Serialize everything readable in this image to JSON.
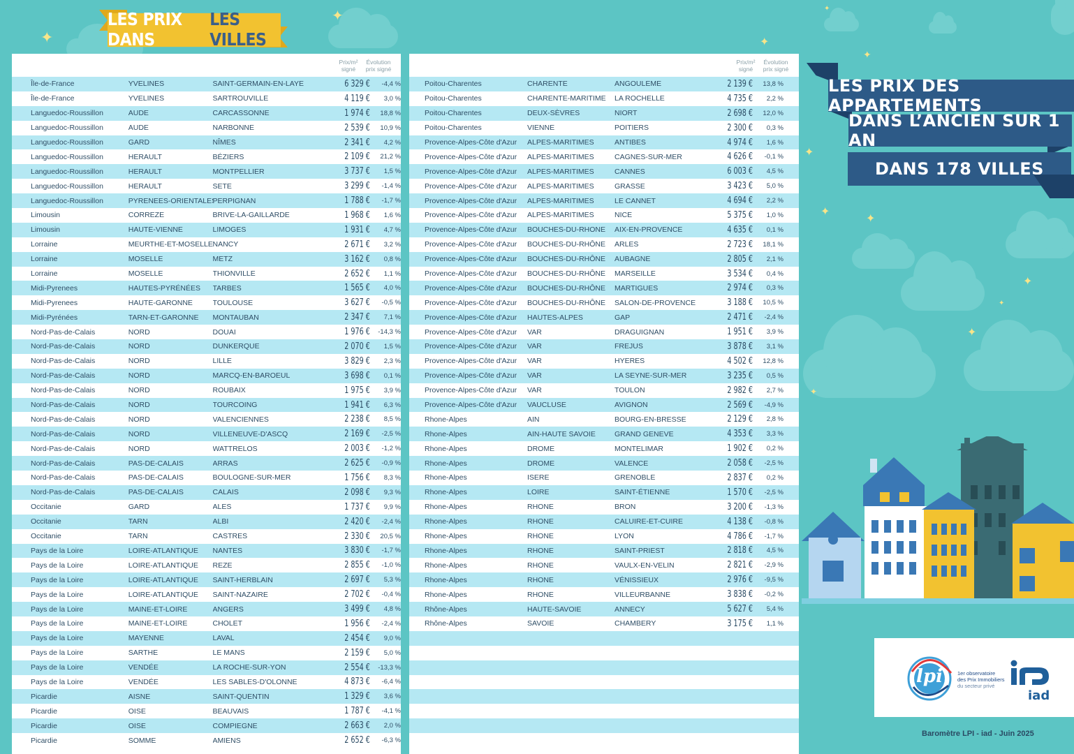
{
  "header": {
    "prefix": "LES PRIX DANS",
    "highlight": "LES VILLES"
  },
  "title": {
    "line1": "LES PRIX DES APPARTEMENTS",
    "line2": "DANS L’ANCIEN SUR 1 AN",
    "line3": "DANS 178 VILLES"
  },
  "columns": {
    "price": "Prix/m²\nsigné",
    "evolution": "Évolution\nprix signé"
  },
  "left_rows": [
    [
      "Île-de-France",
      "YVELINES",
      "SAINT-GERMAIN-EN-LAYE",
      "6 329 €",
      "-4,4 %"
    ],
    [
      "Île-de-France",
      "YVELINES",
      "SARTROUVILLE",
      "4 119 €",
      "3,0 %"
    ],
    [
      "Languedoc-Roussillon",
      "AUDE",
      "CARCASSONNE",
      "1 974 €",
      "18,8 %"
    ],
    [
      "Languedoc-Roussillon",
      "AUDE",
      "NARBONNE",
      "2 539 €",
      "10,9 %"
    ],
    [
      "Languedoc-Roussillon",
      "GARD",
      "NÎMES",
      "2 341 €",
      "4,2 %"
    ],
    [
      "Languedoc-Roussillon",
      "HERAULT",
      "BÉZIERS",
      "2 109 €",
      "21,2 %"
    ],
    [
      "Languedoc-Roussillon",
      "HERAULT",
      "MONTPELLIER",
      "3 737 €",
      "1,5 %"
    ],
    [
      "Languedoc-Roussillon",
      "HERAULT",
      "SETE",
      "3 299 €",
      "-1,4 %"
    ],
    [
      "Languedoc-Roussillon",
      "PYRENEES-ORIENTALES",
      "PERPIGNAN",
      "1 788 €",
      "-1,7 %"
    ],
    [
      "Limousin",
      "CORREZE",
      "BRIVE-LA-GAILLARDE",
      "1 968 €",
      "1,6 %"
    ],
    [
      "Limousin",
      "HAUTE-VIENNE",
      "LIMOGES",
      "1 931 €",
      "4,7 %"
    ],
    [
      "Lorraine",
      "MEURTHE-ET-MOSELLE",
      "NANCY",
      "2 671 €",
      "3,2 %"
    ],
    [
      "Lorraine",
      "MOSELLE",
      "METZ",
      "3 162 €",
      "0,8 %"
    ],
    [
      "Lorraine",
      "MOSELLE",
      "THIONVILLE",
      "2 652 €",
      "1,1 %"
    ],
    [
      "Midi-Pyrenees",
      " HAUTES-PYRÉNÉES",
      "TARBES",
      "1 565 €",
      "4,0 %"
    ],
    [
      "Midi-Pyrenees",
      "HAUTE-GARONNE",
      "TOULOUSE",
      "3 627 €",
      "-0,5 %"
    ],
    [
      "Midi-Pyrénées",
      "TARN-ET-GARONNE",
      "MONTAUBAN",
      "2 347 €",
      "7,1 %"
    ],
    [
      "Nord-Pas-de-Calais",
      "NORD",
      "DOUAI",
      "1 976 €",
      "-14,3 %"
    ],
    [
      "Nord-Pas-de-Calais",
      "NORD",
      "DUNKERQUE",
      "2 070 €",
      "1,5 %"
    ],
    [
      "Nord-Pas-de-Calais",
      "NORD",
      "LILLE",
      "3 829 €",
      "2,3 %"
    ],
    [
      "Nord-Pas-de-Calais",
      "NORD",
      "MARCQ-EN-BAROEUL",
      "3 698 €",
      "0,1 %"
    ],
    [
      "Nord-Pas-de-Calais",
      "NORD",
      "ROUBAIX",
      "1 975 €",
      "3,9 %"
    ],
    [
      "Nord-Pas-de-Calais",
      "NORD",
      "TOURCOING",
      "1 941 €",
      "6,3 %"
    ],
    [
      "Nord-Pas-de-Calais",
      "NORD",
      "VALENCIENNES",
      "2 238 €",
      "8,5 %"
    ],
    [
      "Nord-Pas-de-Calais",
      "NORD",
      "VILLENEUVE-D'ASCQ",
      "2 169 €",
      "-2,5 %"
    ],
    [
      "Nord-Pas-de-Calais",
      "NORD",
      "WATTRELOS",
      "2 003 €",
      "-1,2 %"
    ],
    [
      "Nord-Pas-de-Calais",
      "PAS-DE-CALAIS",
      "ARRAS",
      "2 625 €",
      "-0,9 %"
    ],
    [
      "Nord-Pas-de-Calais",
      "PAS-DE-CALAIS",
      "BOULOGNE-SUR-MER",
      "1 756 €",
      "8,3 %"
    ],
    [
      "Nord-Pas-de-Calais",
      "PAS-DE-CALAIS",
      "CALAIS",
      "2 098 €",
      "9,3 %"
    ],
    [
      "Occitanie",
      "GARD",
      "ALES",
      "1 737 €",
      "9,9 %"
    ],
    [
      "Occitanie",
      "TARN",
      "ALBI",
      "2 420 €",
      "-2,4 %"
    ],
    [
      "Occitanie",
      "TARN",
      "CASTRES",
      "2 330 €",
      "20,5 %"
    ],
    [
      "Pays de la Loire",
      "LOIRE-ATLANTIQUE",
      "NANTES",
      "3 830 €",
      "-1,7 %"
    ],
    [
      "Pays de la Loire",
      "LOIRE-ATLANTIQUE",
      "REZE",
      "2 855 €",
      "-1,0 %"
    ],
    [
      "Pays de la Loire",
      "LOIRE-ATLANTIQUE",
      "SAINT-HERBLAIN",
      "2 697 €",
      "5,3 %"
    ],
    [
      "Pays de la Loire",
      "LOIRE-ATLANTIQUE",
      "SAINT-NAZAIRE",
      "2 702 €",
      "-0,4 %"
    ],
    [
      "Pays de la Loire",
      "MAINE-ET-LOIRE",
      "ANGERS",
      "3 499 €",
      "4,8 %"
    ],
    [
      "Pays de la Loire",
      "MAINE-ET-LOIRE",
      "CHOLET",
      "1 956 €",
      "-2,4 %"
    ],
    [
      "Pays de la Loire",
      "MAYENNE",
      "LAVAL",
      "2 454 €",
      "9,0 %"
    ],
    [
      "Pays de la Loire",
      "SARTHE",
      "LE MANS",
      "2 159 €",
      "5,0 %"
    ],
    [
      "Pays de la Loire",
      "VENDÉE",
      "LA ROCHE-SUR-YON",
      "2 554 €",
      "-13,3 %"
    ],
    [
      "Pays de la Loire",
      "VENDÉE",
      "LES SABLES-D'OLONNE",
      "4 873 €",
      "-6,4 %"
    ],
    [
      "Picardie",
      "AISNE",
      "SAINT-QUENTIN",
      "1 329 €",
      "3,6 %"
    ],
    [
      "Picardie",
      "OISE",
      "BEAUVAIS",
      "1 787 €",
      "-4,1 %"
    ],
    [
      "Picardie",
      "OISE",
      "COMPIEGNE",
      "2 663 €",
      "2,0 %"
    ],
    [
      "Picardie",
      "SOMME",
      "AMIENS",
      "2 652 €",
      "-6,3 %"
    ]
  ],
  "right_rows": [
    [
      "Poitou-Charentes",
      "CHARENTE",
      "ANGOULEME",
      "2 139 €",
      "13,8 %"
    ],
    [
      "Poitou-Charentes",
      "CHARENTE-MARITIME",
      "LA ROCHELLE",
      "4 735 €",
      "2,2 %"
    ],
    [
      "Poitou-Charentes",
      "DEUX-SÈVRES",
      "NIORT",
      "2 698 €",
      "12,0 %"
    ],
    [
      "Poitou-Charentes",
      "VIENNE",
      "POITIERS",
      "2 300 €",
      "0,3 %"
    ],
    [
      "Provence-Alpes-Côte d'Azur",
      "ALPES-MARITIMES",
      "ANTIBES",
      "4 974 €",
      "1,6 %"
    ],
    [
      "Provence-Alpes-Côte d'Azur",
      "ALPES-MARITIMES",
      "CAGNES-SUR-MER",
      "4 626 €",
      "-0,1 %"
    ],
    [
      "Provence-Alpes-Côte d'Azur",
      "ALPES-MARITIMES",
      "CANNES",
      "6 003 €",
      "4,5 %"
    ],
    [
      "Provence-Alpes-Côte d'Azur",
      "ALPES-MARITIMES",
      "GRASSE",
      "3 423 €",
      "5,0 %"
    ],
    [
      "Provence-Alpes-Côte d'Azur",
      "ALPES-MARITIMES",
      "LE CANNET",
      "4 694 €",
      "2,2 %"
    ],
    [
      "Provence-Alpes-Côte d'Azur",
      "ALPES-MARITIMES",
      "NICE",
      "5 375 €",
      "1,0 %"
    ],
    [
      "Provence-Alpes-Côte d'Azur",
      "BOUCHES-DU-RHONE",
      "AIX-EN-PROVENCE",
      "4 635 €",
      "0,1 %"
    ],
    [
      "Provence-Alpes-Côte d'Azur",
      "BOUCHES-DU-RHÔNE",
      "ARLES",
      "2 723 €",
      "18,1 %"
    ],
    [
      "Provence-Alpes-Côte d'Azur",
      "BOUCHES-DU-RHÔNE",
      "AUBAGNE",
      "2 805 €",
      "2,1 %"
    ],
    [
      "Provence-Alpes-Côte d'Azur",
      "BOUCHES-DU-RHÔNE",
      "MARSEILLE",
      "3 534 €",
      "0,4 %"
    ],
    [
      "Provence-Alpes-Côte d'Azur",
      "BOUCHES-DU-RHÔNE",
      "MARTIGUES",
      "2 974 €",
      "0,3 %"
    ],
    [
      "Provence-Alpes-Côte d'Azur",
      "BOUCHES-DU-RHÔNE",
      "SALON-DE-PROVENCE",
      "3 188 €",
      "10,5 %"
    ],
    [
      "Provence-Alpes-Côte d'Azur",
      "HAUTES-ALPES",
      "GAP",
      "2 471 €",
      "-2,4 %"
    ],
    [
      "Provence-Alpes-Côte d'Azur",
      "VAR",
      "DRAGUIGNAN",
      "1 951 €",
      "3,9 %"
    ],
    [
      "Provence-Alpes-Côte d'Azur",
      "VAR",
      "FREJUS",
      "3 878 €",
      "3,1 %"
    ],
    [
      "Provence-Alpes-Côte d'Azur",
      "VAR",
      "HYERES",
      "4 502 €",
      "12,8 %"
    ],
    [
      "Provence-Alpes-Côte d'Azur",
      "VAR",
      "LA SEYNE-SUR-MER",
      "3 235 €",
      "0,5 %"
    ],
    [
      "Provence-Alpes-Côte d'Azur",
      "VAR",
      "TOULON",
      "2 982 €",
      "2,7 %"
    ],
    [
      "Provence-Alpes-Côte d'Azur",
      "VAUCLUSE",
      "AVIGNON",
      "2 569 €",
      "-4,9 %"
    ],
    [
      "Rhone-Alpes",
      "AIN",
      "BOURG-EN-BRESSE",
      "2 129 €",
      "2,8 %"
    ],
    [
      "Rhone-Alpes",
      "AIN-HAUTE SAVOIE",
      "GRAND GENEVE",
      "4 353 €",
      "3,3 %"
    ],
    [
      "Rhone-Alpes",
      "DROME",
      "MONTELIMAR",
      "1 902 €",
      "0,2 %"
    ],
    [
      "Rhone-Alpes",
      "DROME",
      "VALENCE",
      "2 058 €",
      "-2,5 %"
    ],
    [
      "Rhone-Alpes",
      "ISERE",
      "GRENOBLE",
      "2 837 €",
      "0,2 %"
    ],
    [
      "Rhone-Alpes",
      "LOIRE",
      "SAINT-ÉTIENNE",
      "1 570 €",
      "-2,5 %"
    ],
    [
      "Rhone-Alpes",
      "RHONE",
      "BRON",
      "3 200 €",
      "-1,3 %"
    ],
    [
      "Rhone-Alpes",
      "RHONE",
      "CALUIRE-ET-CUIRE",
      "4 138 €",
      "-0,8 %"
    ],
    [
      "Rhone-Alpes",
      "RHONE",
      "LYON",
      "4 786 €",
      "-1,7 %"
    ],
    [
      "Rhone-Alpes",
      "RHONE",
      "SAINT-PRIEST",
      "2 818 €",
      "4,5 %"
    ],
    [
      "Rhone-Alpes",
      "RHONE",
      "VAULX-EN-VELIN",
      "2 821 €",
      "-2,9 %"
    ],
    [
      "Rhone-Alpes",
      "RHONE",
      "VÉNISSIEUX",
      "2 976 €",
      "-9,5 %"
    ],
    [
      "Rhone-Alpes",
      "RHONE",
      "VILLEURBANNE",
      "3 838 €",
      "-0,2 %"
    ],
    [
      "Rhône-Alpes",
      "HAUTE-SAVOIE",
      "ANNECY",
      "5 627 €",
      "5,4 %"
    ],
    [
      "Rhône-Alpes",
      "SAVOIE",
      "CHAMBERY",
      "3 175 €",
      "1,1 %"
    ]
  ],
  "right_empty_rows": 8,
  "logos": {
    "lpi_mark": "lpi",
    "lpi_line1": "1er observatoire",
    "lpi_line2": "des Prix Immobiliers",
    "lpi_line3": "du secteur privé",
    "iad": "iad"
  },
  "footer": "Baromètre LPI - iad - Juin 2025",
  "colors": {
    "background": "#5cc5c4",
    "stripe": "#b5e8f3",
    "ribbon": "#2d5a87",
    "banner": "#f2c230",
    "text": "#2f4e66"
  }
}
